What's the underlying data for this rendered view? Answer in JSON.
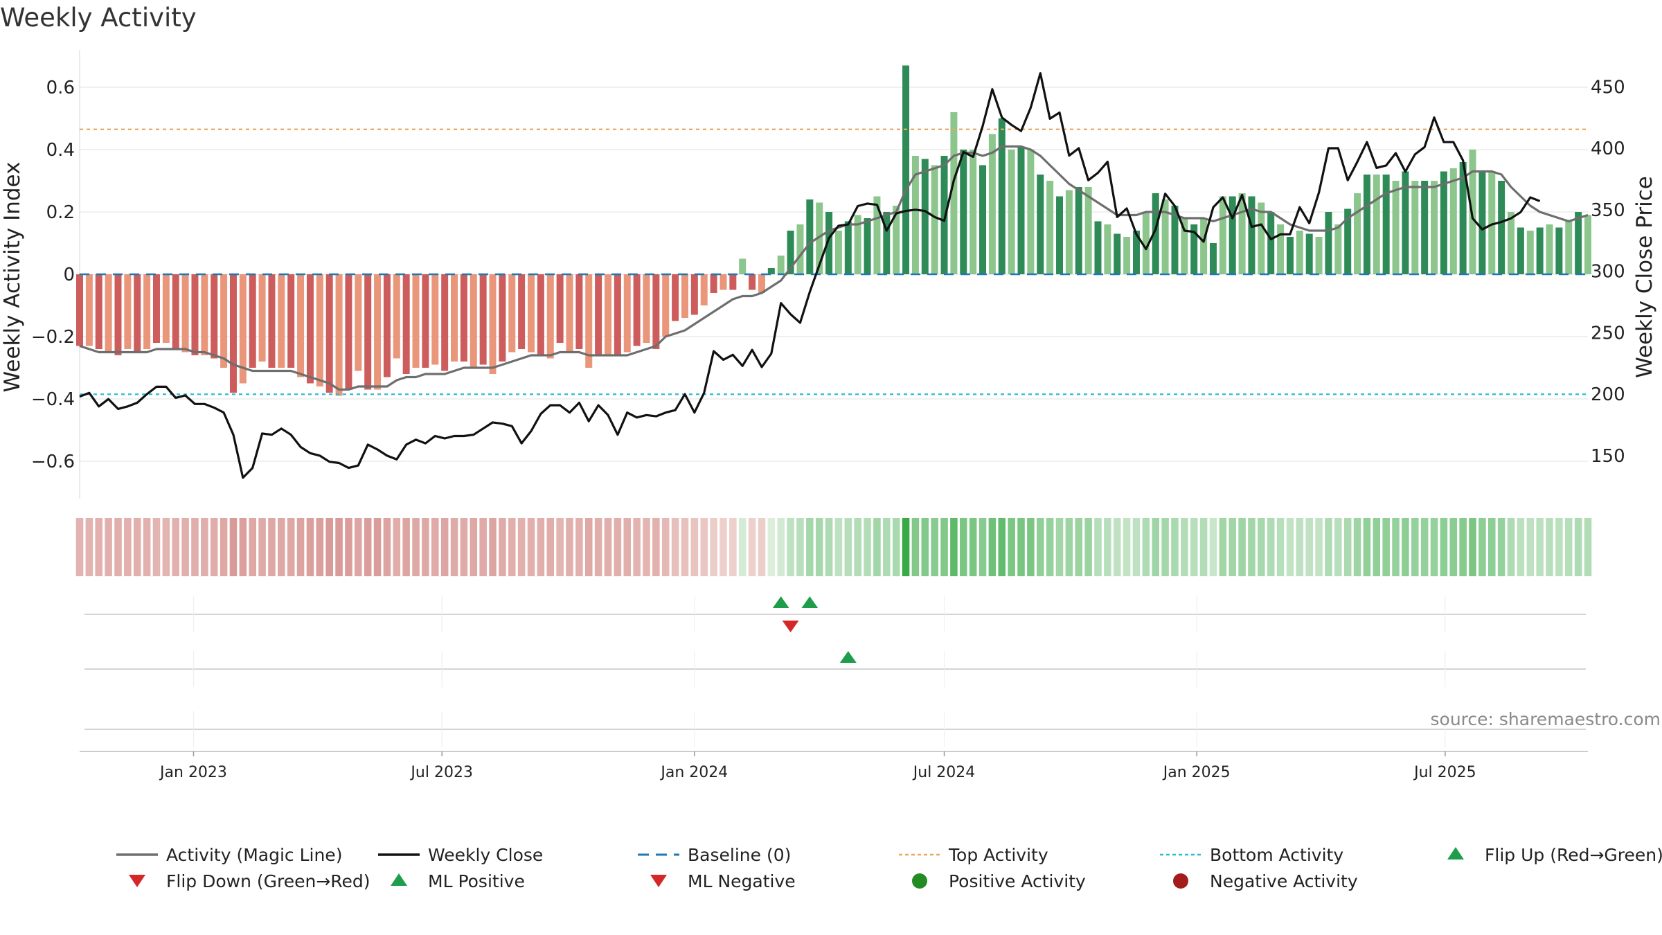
{
  "chart_data": {
    "type": "bar",
    "title": "Weekly Activity",
    "ylabel_left": "Weekly Activity Index",
    "ylabel_right": "Weekly Close Price",
    "source": "source: sharemaestro.com",
    "x_start": "2022-10-10",
    "x_end": "2025-10-13",
    "ylim_left": [
      -0.72,
      0.72
    ],
    "ylim_right": [
      115,
      480
    ],
    "yticks_left": [
      {
        "v": 0.6,
        "label": "0.6"
      },
      {
        "v": 0.4,
        "label": "0.4"
      },
      {
        "v": 0.2,
        "label": "0.2"
      },
      {
        "v": 0,
        "label": "0"
      },
      {
        "v": -0.2,
        "label": "−0.2"
      },
      {
        "v": -0.4,
        "label": "−0.4"
      },
      {
        "v": -0.6,
        "label": "−0.6"
      }
    ],
    "yticks_right": [
      {
        "v": 450,
        "label": "450"
      },
      {
        "v": 400,
        "label": "400"
      },
      {
        "v": 350,
        "label": "350"
      },
      {
        "v": 300,
        "label": "300"
      },
      {
        "v": 250,
        "label": "250"
      },
      {
        "v": 200,
        "label": "200"
      },
      {
        "v": 150,
        "label": "150"
      }
    ],
    "xticks": [
      {
        "date": "2023-01-01",
        "label": "Jan 2023"
      },
      {
        "date": "2023-07-01",
        "label": "Jul 2023"
      },
      {
        "date": "2024-01-01",
        "label": "Jan 2024"
      },
      {
        "date": "2024-07-01",
        "label": "Jul 2024"
      },
      {
        "date": "2025-01-01",
        "label": "Jan 2025"
      },
      {
        "date": "2025-07-01",
        "label": "Jul 2025"
      }
    ],
    "top_activity": 0.465,
    "bottom_activity": -0.385,
    "activity": [
      -0.23,
      -0.23,
      -0.24,
      -0.25,
      -0.26,
      -0.24,
      -0.25,
      -0.24,
      -0.22,
      -0.22,
      -0.24,
      -0.25,
      -0.26,
      -0.26,
      -0.27,
      -0.3,
      -0.38,
      -0.35,
      -0.3,
      -0.28,
      -0.3,
      -0.3,
      -0.3,
      -0.33,
      -0.35,
      -0.36,
      -0.38,
      -0.39,
      -0.37,
      -0.31,
      -0.37,
      -0.37,
      -0.33,
      -0.27,
      -0.32,
      -0.3,
      -0.3,
      -0.29,
      -0.31,
      -0.28,
      -0.28,
      -0.3,
      -0.29,
      -0.32,
      -0.28,
      -0.25,
      -0.24,
      -0.25,
      -0.26,
      -0.27,
      -0.22,
      -0.25,
      -0.24,
      -0.3,
      -0.26,
      -0.26,
      -0.26,
      -0.25,
      -0.23,
      -0.22,
      -0.24,
      -0.2,
      -0.15,
      -0.14,
      -0.13,
      -0.1,
      -0.06,
      -0.05,
      -0.05,
      0.05,
      -0.05,
      -0.06,
      0.02,
      0.06,
      0.14,
      0.16,
      0.24,
      0.23,
      0.2,
      0.14,
      0.17,
      0.19,
      0.18,
      0.25,
      0.2,
      0.22,
      0.67,
      0.38,
      0.37,
      0.35,
      0.38,
      0.52,
      0.4,
      0.4,
      0.35,
      0.45,
      0.5,
      0.4,
      0.41,
      0.4,
      0.32,
      0.3,
      0.25,
      0.27,
      0.28,
      0.28,
      0.17,
      0.16,
      0.13,
      0.12,
      0.14,
      0.2,
      0.26,
      0.24,
      0.22,
      0.18,
      0.16,
      0.18,
      0.1,
      0.25,
      0.25,
      0.26,
      0.25,
      0.23,
      0.2,
      0.16,
      0.12,
      0.14,
      0.13,
      0.12,
      0.2,
      0.16,
      0.21,
      0.26,
      0.32,
      0.32,
      0.32,
      0.3,
      0.33,
      0.3,
      0.3,
      0.3,
      0.33,
      0.34,
      0.36,
      0.4,
      0.33,
      0.33,
      0.3,
      0.2,
      0.15,
      0.14,
      0.15,
      0.16,
      0.15,
      0.17,
      0.2,
      0.19
    ],
    "magic_line": [
      -0.23,
      -0.24,
      -0.25,
      -0.25,
      -0.25,
      -0.25,
      -0.25,
      -0.25,
      -0.24,
      -0.24,
      -0.24,
      -0.24,
      -0.25,
      -0.25,
      -0.26,
      -0.27,
      -0.29,
      -0.3,
      -0.31,
      -0.31,
      -0.31,
      -0.31,
      -0.31,
      -0.32,
      -0.33,
      -0.34,
      -0.35,
      -0.37,
      -0.37,
      -0.36,
      -0.36,
      -0.36,
      -0.36,
      -0.34,
      -0.33,
      -0.33,
      -0.32,
      -0.32,
      -0.32,
      -0.31,
      -0.3,
      -0.3,
      -0.3,
      -0.3,
      -0.29,
      -0.28,
      -0.27,
      -0.26,
      -0.26,
      -0.26,
      -0.25,
      -0.25,
      -0.25,
      -0.26,
      -0.26,
      -0.26,
      -0.26,
      -0.26,
      -0.25,
      -0.24,
      -0.23,
      -0.2,
      -0.19,
      -0.18,
      -0.16,
      -0.14,
      -0.12,
      -0.1,
      -0.08,
      -0.07,
      -0.07,
      -0.06,
      -0.04,
      -0.02,
      0.02,
      0.06,
      0.1,
      0.12,
      0.14,
      0.15,
      0.16,
      0.16,
      0.17,
      0.18,
      0.19,
      0.2,
      0.27,
      0.32,
      0.33,
      0.34,
      0.35,
      0.38,
      0.39,
      0.39,
      0.38,
      0.39,
      0.41,
      0.41,
      0.41,
      0.4,
      0.38,
      0.35,
      0.32,
      0.29,
      0.27,
      0.25,
      0.23,
      0.21,
      0.19,
      0.19,
      0.19,
      0.2,
      0.2,
      0.2,
      0.19,
      0.18,
      0.18,
      0.18,
      0.17,
      0.18,
      0.19,
      0.2,
      0.21,
      0.2,
      0.2,
      0.18,
      0.16,
      0.15,
      0.14,
      0.14,
      0.14,
      0.15,
      0.18,
      0.2,
      0.22,
      0.24,
      0.26,
      0.27,
      0.28,
      0.28,
      0.28,
      0.28,
      0.29,
      0.3,
      0.31,
      0.33,
      0.33,
      0.33,
      0.32,
      0.28,
      0.25,
      0.22,
      0.2,
      0.19,
      0.18,
      0.17,
      0.18,
      0.19
    ],
    "weekly_close": [
      198,
      201,
      190,
      196,
      188,
      190,
      193,
      200,
      206,
      206,
      197,
      199,
      192,
      192,
      189,
      185,
      167,
      132,
      140,
      168,
      167,
      172,
      167,
      157,
      152,
      150,
      145,
      144,
      140,
      142,
      159,
      155,
      150,
      147,
      159,
      163,
      160,
      166,
      164,
      166,
      166,
      167,
      172,
      177,
      176,
      174,
      160,
      170,
      184,
      191,
      191,
      185,
      193,
      178,
      191,
      183,
      167,
      185,
      181,
      183,
      182,
      185,
      187,
      200,
      185,
      201,
      235,
      228,
      232,
      223,
      236,
      222,
      233,
      274,
      265,
      258,
      283,
      305,
      327,
      337,
      338,
      353,
      355,
      354,
      333,
      347,
      349,
      350,
      349,
      344,
      341,
      374,
      397,
      393,
      418,
      448,
      425,
      419,
      414,
      433,
      461,
      424,
      429,
      394,
      400,
      374,
      380,
      389,
      344,
      351,
      330,
      318,
      334,
      363,
      353,
      333,
      332,
      324,
      352,
      360,
      343,
      362,
      336,
      338,
      326,
      330,
      330,
      352,
      339,
      364,
      400,
      400,
      374,
      389,
      405,
      384,
      386,
      396,
      381,
      395,
      401,
      425,
      405,
      405,
      390,
      343,
      334,
      338,
      340,
      343,
      348,
      360,
      357
    ],
    "series_names": [
      "Activity (Magic Line)",
      "Weekly Close",
      "Baseline (0)",
      "Top Activity",
      "Bottom Activity"
    ],
    "bar_palette": {
      "pos_dark": "#2e8b57",
      "pos_light": "#8cc68c",
      "neg_dark": "#cd5c5c",
      "neg_light": "#e9967a"
    },
    "line_colors": {
      "magic": "#6e6e6e",
      "close": "#111111",
      "baseline": "#1f77b4",
      "top": "#e8a85c",
      "bottom": "#2bbcd6"
    },
    "markers": {
      "row1_up": [
        "2024-03-04",
        "2024-03-25"
      ],
      "row1_down": [
        "2024-03-11"
      ],
      "row2_up": [
        "2024-04-22"
      ],
      "row3": []
    },
    "legend": [
      {
        "label": "Activity (Magic Line)",
        "icon": "solid-line",
        "color": "#6e6e6e"
      },
      {
        "label": "Weekly Close",
        "icon": "solid-line",
        "color": "#111111"
      },
      {
        "label": "Baseline (0)",
        "icon": "dashed-line",
        "color": "#1f77b4"
      },
      {
        "label": "Top Activity",
        "icon": "dotted-line",
        "color": "#e8a85c"
      },
      {
        "label": "Bottom Activity",
        "icon": "dotted-line",
        "color": "#2bbcd6"
      },
      {
        "label": "Flip Up (Red→Green)",
        "icon": "triangle-up",
        "color": "#1e9e4a"
      },
      {
        "label": "Flip Down (Green→Red)",
        "icon": "triangle-down",
        "color": "#d62728"
      },
      {
        "label": "ML Positive",
        "icon": "triangle-up",
        "color": "#1e9e4a"
      },
      {
        "label": "ML Negative",
        "icon": "triangle-down",
        "color": "#d62728"
      },
      {
        "label": "Positive Activity",
        "icon": "circle",
        "color": "#238b23"
      },
      {
        "label": "Negative Activity",
        "icon": "circle",
        "color": "#a31b1b"
      }
    ]
  }
}
